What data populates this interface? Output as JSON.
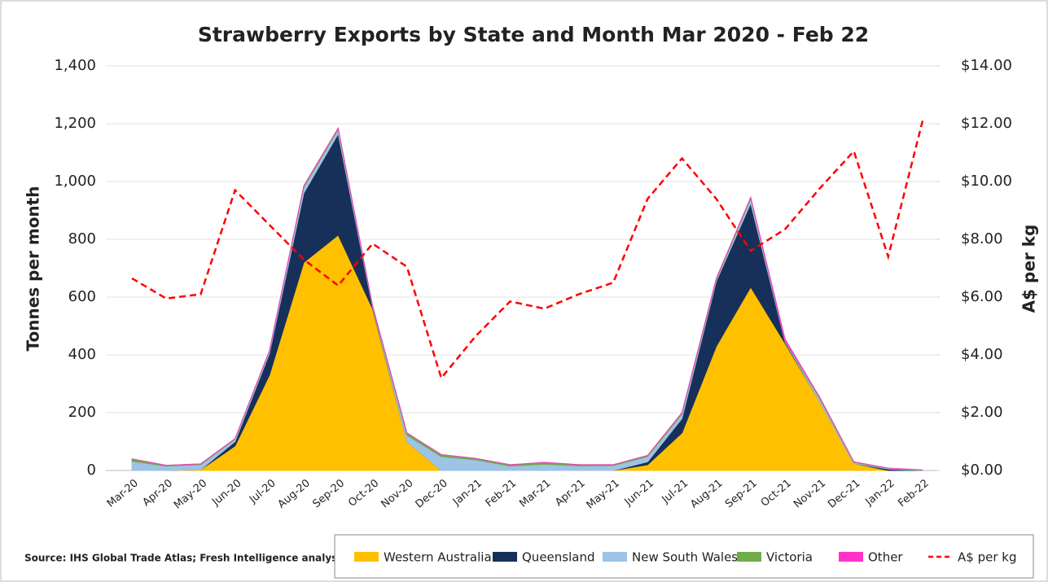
{
  "chart_data": {
    "type": "area",
    "title": "Strawberry Exports by State and Month  Mar 2020 - Feb 22",
    "y_label": "Tonnes per month",
    "y2_label": "A$ per kg",
    "source": "Source: IHS Global Trade Atlas; Fresh Intelligence analysis",
    "categories": [
      "Mar-20",
      "Apr-20",
      "May-20",
      "Jun-20",
      "Jul-20",
      "Aug-20",
      "Sep-20",
      "Oct-20",
      "Nov-20",
      "Dec-20",
      "Jan-21",
      "Feb-21",
      "Mar-21",
      "Apr-21",
      "May-21",
      "Jun-21",
      "Jul-21",
      "Aug-21",
      "Sep-21",
      "Oct-21",
      "Nov-21",
      "Dec-21",
      "Jan-22",
      "Feb-22"
    ],
    "series": [
      {
        "name": "Western Australia",
        "color": "#ffc000",
        "values": [
          0,
          0,
          3,
          85,
          330,
          720,
          815,
          560,
          100,
          0,
          0,
          0,
          0,
          0,
          0,
          20,
          130,
          430,
          635,
          440,
          240,
          25,
          0,
          0
        ]
      },
      {
        "name": "Queensland",
        "color": "#17305a",
        "values": [
          0,
          0,
          0,
          15,
          75,
          240,
          350,
          5,
          0,
          0,
          0,
          0,
          0,
          0,
          0,
          10,
          50,
          225,
          290,
          5,
          0,
          0,
          5,
          0
        ]
      },
      {
        "name": "New South Wales",
        "color": "#9dc3e6",
        "values": [
          32,
          15,
          17,
          8,
          8,
          20,
          15,
          3,
          22,
          48,
          37,
          15,
          22,
          16,
          17,
          18,
          15,
          5,
          15,
          3,
          10,
          3,
          2,
          1
        ]
      },
      {
        "name": "Victoria",
        "color": "#70ad47",
        "values": [
          8,
          3,
          3,
          2,
          2,
          5,
          5,
          2,
          8,
          7,
          5,
          5,
          6,
          4,
          3,
          4,
          5,
          5,
          5,
          2,
          5,
          2,
          1,
          1
        ]
      },
      {
        "name": "Other",
        "color": "#ff33cc",
        "values": [
          0,
          0,
          0,
          0,
          0,
          0,
          0,
          0,
          0,
          0,
          0,
          0,
          0,
          0,
          0,
          0,
          0,
          0,
          0,
          5,
          0,
          0,
          0,
          0
        ]
      },
      {
        "name": "A$ per kg",
        "color": "#ff0000",
        "type": "line",
        "axis": "y2",
        "dashed": true,
        "values": [
          6.65,
          5.95,
          6.1,
          9.7,
          8.5,
          7.3,
          6.4,
          7.85,
          7.05,
          3.2,
          4.65,
          5.85,
          5.6,
          6.1,
          6.5,
          9.4,
          10.8,
          9.4,
          7.6,
          8.35,
          9.75,
          11.05,
          7.4,
          12.1
        ]
      }
    ],
    "ylim": [
      0,
      1400
    ],
    "yticks": [
      0,
      200,
      400,
      600,
      800,
      {
        "value": 1000,
        "label": "1,000"
      },
      {
        "value": 1200,
        "label": "1,200"
      },
      {
        "value": 1400,
        "label": "1,400"
      }
    ],
    "y2lim": [
      0,
      14
    ],
    "y2ticks": [
      {
        "value": 0,
        "label": "$0.00"
      },
      {
        "value": 2,
        "label": "$2.00"
      },
      {
        "value": 4,
        "label": "$4.00"
      },
      {
        "value": 6,
        "label": "$6.00"
      },
      {
        "value": 8,
        "label": "$8.00"
      },
      {
        "value": 10,
        "label": "$10.00"
      },
      {
        "value": 12,
        "label": "$12.00"
      },
      {
        "value": 14,
        "label": "$14.00"
      }
    ],
    "grid": true,
    "stacked": true
  }
}
